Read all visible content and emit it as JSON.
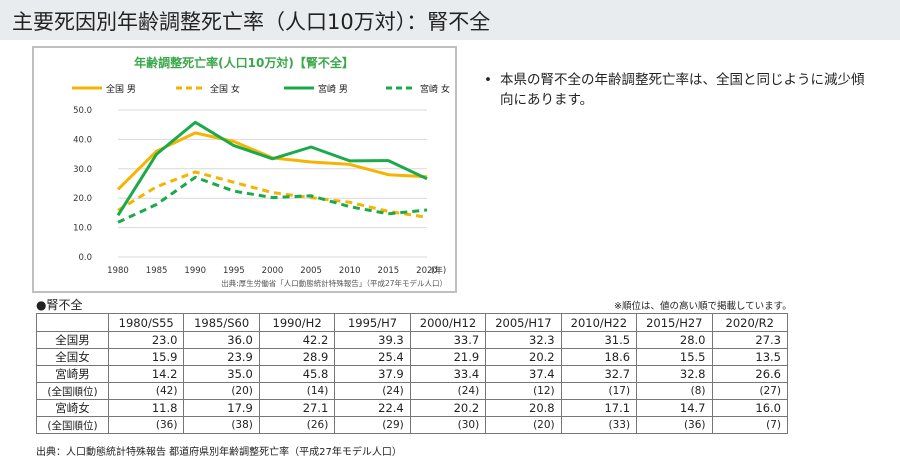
{
  "page_title": "主要死因別年齢調整死亡率（人口10万対）：腎不全",
  "bullet": {
    "symbol": "•",
    "text": "本県の腎不全の年齢調整死亡率は、全国と同じように減少傾向にあります。"
  },
  "chart_data": {
    "type": "line",
    "title": "年齢調整死亡率(人口10万対)【腎不全】",
    "x": [
      "1980",
      "1985",
      "1990",
      "1995",
      "2000",
      "2005",
      "2010",
      "2015",
      "2020"
    ],
    "x_unit": "(年)",
    "yticks": [
      "50.0",
      "40.0",
      "30.0",
      "20.0",
      "10.0",
      "0.0"
    ],
    "ylim": [
      0,
      50
    ],
    "grid": true,
    "legend_position": "top",
    "source": "出典:厚生労働省「人口動態統計特殊報告」（平成27年モデル人口）",
    "series": [
      {
        "name": "全国 男",
        "color": "#F5B400",
        "dashed": false,
        "values": [
          23.0,
          36.0,
          42.2,
          39.3,
          33.7,
          32.3,
          31.5,
          28.0,
          27.3
        ]
      },
      {
        "name": "全国 女",
        "color": "#F5B400",
        "dashed": true,
        "values": [
          15.9,
          23.9,
          28.9,
          25.4,
          21.9,
          20.2,
          18.6,
          15.5,
          13.5
        ]
      },
      {
        "name": "宮崎 男",
        "color": "#1AAA4B",
        "dashed": false,
        "values": [
          14.2,
          35.0,
          45.8,
          37.9,
          33.4,
          37.4,
          32.7,
          32.8,
          26.6
        ]
      },
      {
        "name": "宮崎 女",
        "color": "#1AAA4B",
        "dashed": true,
        "values": [
          11.8,
          17.9,
          27.1,
          22.4,
          20.2,
          20.8,
          17.1,
          14.7,
          16.0
        ]
      }
    ]
  },
  "table_section": {
    "label": "●腎不全",
    "note": "※順位は、値の高い順で掲載しています。",
    "headers": [
      "",
      "1980/S55",
      "1985/S60",
      "1990/H2",
      "1995/H7",
      "2000/H12",
      "2005/H17",
      "2010/H22",
      "2015/H27",
      "2020/R2"
    ],
    "rows": [
      {
        "label": "全国男",
        "values": [
          "23.0",
          "36.0",
          "42.2",
          "39.3",
          "33.7",
          "32.3",
          "31.5",
          "28.0",
          "27.3"
        ]
      },
      {
        "label": "全国女",
        "values": [
          "15.9",
          "23.9",
          "28.9",
          "25.4",
          "21.9",
          "20.2",
          "18.6",
          "15.5",
          "13.5"
        ]
      },
      {
        "label": "宮崎男",
        "values": [
          "14.2",
          "35.0",
          "45.8",
          "37.9",
          "33.4",
          "37.4",
          "32.7",
          "32.8",
          "26.6"
        ]
      },
      {
        "label": "(全国順位)",
        "rank": true,
        "values": [
          "(42)",
          "(20)",
          "(14)",
          "(24)",
          "(24)",
          "(12)",
          "(17)",
          "(8)",
          "(27)"
        ]
      },
      {
        "label": "宮崎女",
        "values": [
          "11.8",
          "17.9",
          "27.1",
          "22.4",
          "20.2",
          "20.8",
          "17.1",
          "14.7",
          "16.0"
        ]
      },
      {
        "label": "(全国順位)",
        "rank": true,
        "values": [
          "(36)",
          "(38)",
          "(26)",
          "(29)",
          "(30)",
          "(20)",
          "(33)",
          "(36)",
          "(7)"
        ]
      }
    ]
  },
  "source_footer": "出典：人口動態統計特殊報告 都道府県別年齢調整死亡率（平成27年モデル人口）"
}
